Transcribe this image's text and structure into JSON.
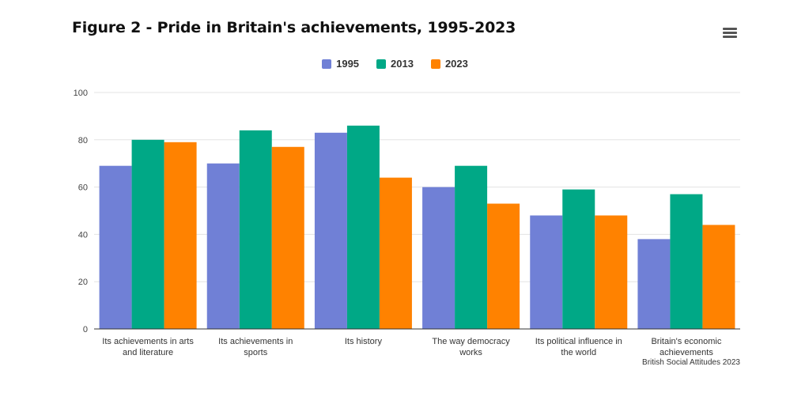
{
  "chart_data": {
    "type": "bar",
    "title": "Figure 2 - Pride in Britain's achievements, 1995-2023",
    "categories": [
      [
        "Its achievements in arts",
        "and literature"
      ],
      [
        "Its achievements in",
        "sports"
      ],
      [
        "Its history"
      ],
      [
        "The way democracy",
        "works"
      ],
      [
        "Its political influence in",
        "the world"
      ],
      [
        "Britain's economic",
        "achievements"
      ]
    ],
    "series": [
      {
        "name": "1995",
        "color": "#7080d6",
        "values": [
          69,
          70,
          83,
          60,
          48,
          38
        ]
      },
      {
        "name": "2013",
        "color": "#00a886",
        "values": [
          80,
          84,
          86,
          69,
          59,
          57
        ]
      },
      {
        "name": "2023",
        "color": "#ff8200",
        "values": [
          79,
          77,
          64,
          53,
          48,
          44
        ]
      }
    ],
    "ylim": [
      0,
      100
    ],
    "yticks": [
      0,
      20,
      40,
      60,
      80,
      100
    ],
    "grid": true,
    "legend_position": "top-center",
    "credit": "British Social Attitudes 2023"
  },
  "menu_icon": "hamburger-menu-icon"
}
